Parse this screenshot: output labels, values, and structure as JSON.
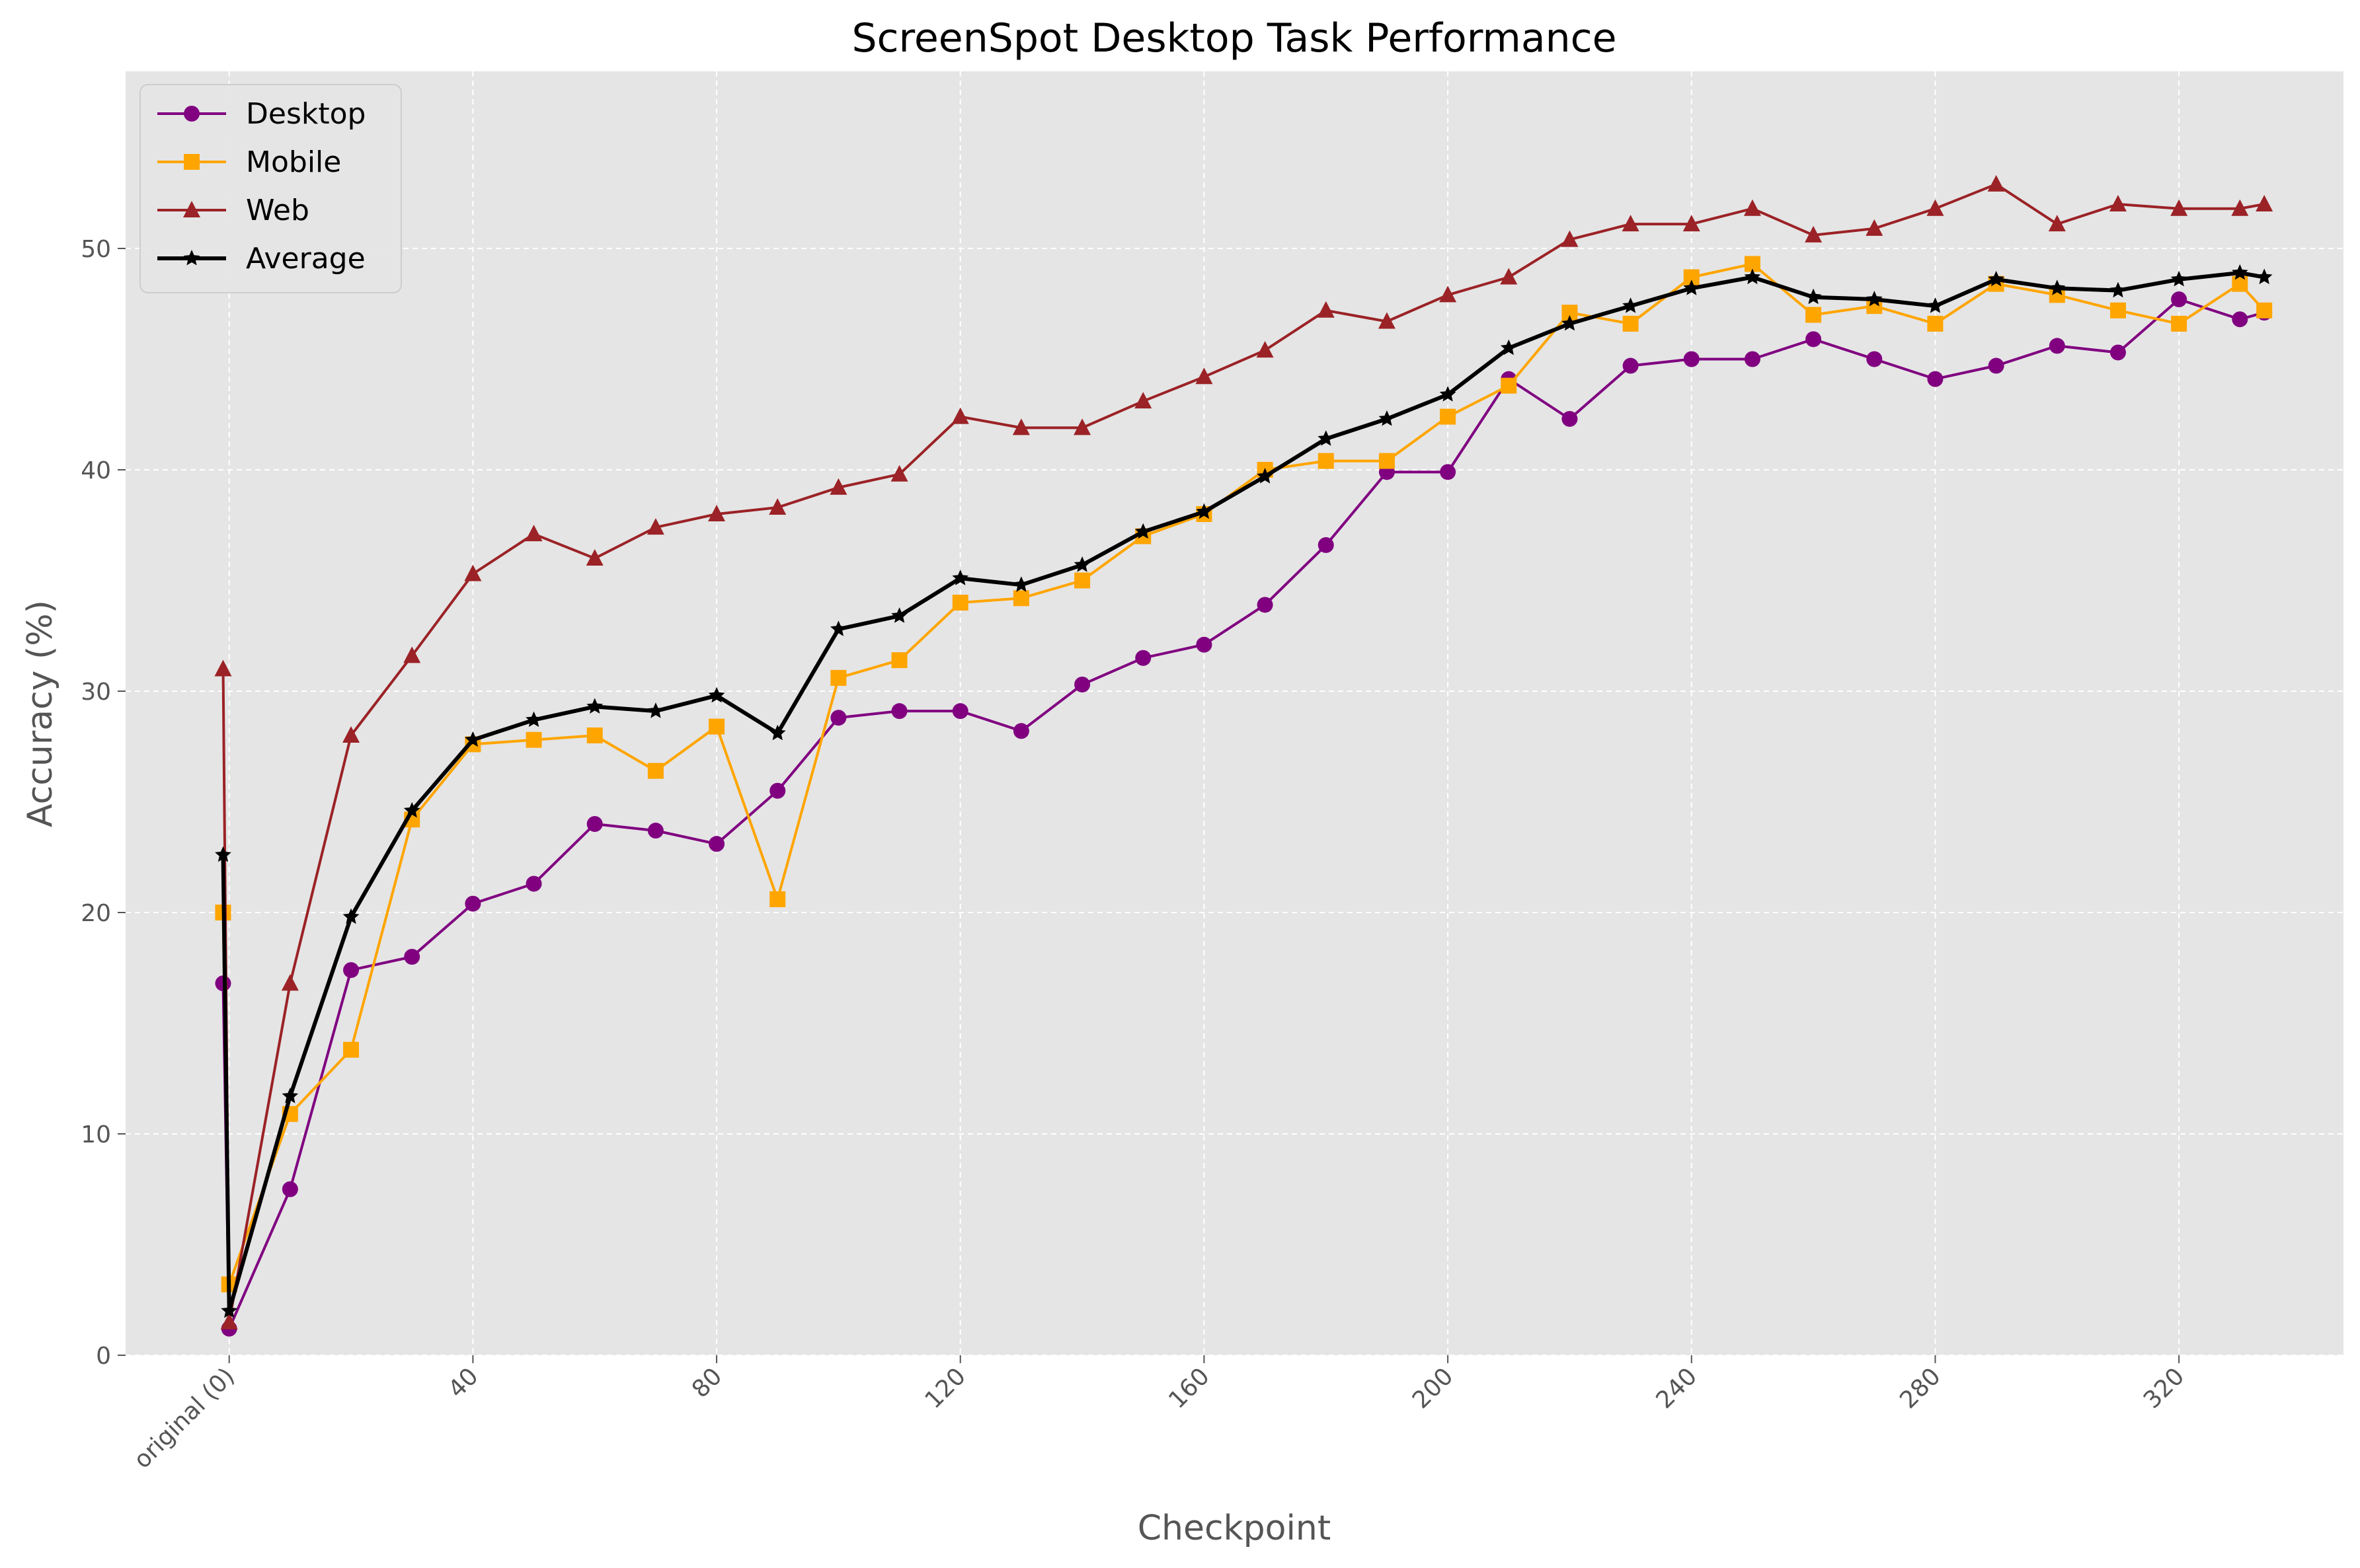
{
  "chart_data": {
    "type": "line",
    "title": "ScreenSpot Desktop Task Performance",
    "xlabel": "Checkpoint",
    "ylabel": "Accuracy (%)",
    "xlim": [
      -17,
      347
    ],
    "ylim": [
      0,
      58
    ],
    "grid": true,
    "legend_position": "top-left",
    "x_ticks": [
      {
        "value": 0,
        "label": "original (0)"
      },
      {
        "value": 40,
        "label": "40"
      },
      {
        "value": 80,
        "label": "80"
      },
      {
        "value": 120,
        "label": "120"
      },
      {
        "value": 160,
        "label": "160"
      },
      {
        "value": 200,
        "label": "200"
      },
      {
        "value": 240,
        "label": "240"
      },
      {
        "value": 280,
        "label": "280"
      },
      {
        "value": 320,
        "label": "320"
      }
    ],
    "y_ticks": [
      0,
      10,
      20,
      30,
      40,
      50
    ],
    "series": [
      {
        "name": "Desktop",
        "color": "#800080",
        "marker": "circle",
        "points": [
          [
            -1,
            16.8
          ],
          [
            0,
            1.2
          ],
          [
            10,
            7.5
          ],
          [
            20,
            17.4
          ],
          [
            30,
            18.0
          ],
          [
            40,
            20.4
          ],
          [
            50,
            21.3
          ],
          [
            60,
            24.0
          ],
          [
            70,
            23.7
          ],
          [
            80,
            23.1
          ],
          [
            90,
            25.5
          ],
          [
            100,
            28.8
          ],
          [
            110,
            29.1
          ],
          [
            120,
            29.1
          ],
          [
            130,
            28.2
          ],
          [
            140,
            30.3
          ],
          [
            150,
            31.5
          ],
          [
            160,
            32.1
          ],
          [
            170,
            33.9
          ],
          [
            180,
            36.6
          ],
          [
            190,
            39.9
          ],
          [
            200,
            39.9
          ],
          [
            210,
            44.1
          ],
          [
            220,
            42.3
          ],
          [
            230,
            44.7
          ],
          [
            240,
            45.0
          ],
          [
            250,
            45.0
          ],
          [
            260,
            45.9
          ],
          [
            270,
            45.0
          ],
          [
            280,
            44.1
          ],
          [
            290,
            44.7
          ],
          [
            300,
            45.6
          ],
          [
            310,
            45.3
          ],
          [
            320,
            47.7
          ],
          [
            330,
            46.8
          ],
          [
            334,
            47.1
          ]
        ]
      },
      {
        "name": "Mobile",
        "color": "#FFA500",
        "marker": "square",
        "points": [
          [
            -1,
            20.0
          ],
          [
            0,
            3.2
          ],
          [
            10,
            10.9
          ],
          [
            20,
            13.8
          ],
          [
            30,
            24.2
          ],
          [
            40,
            27.6
          ],
          [
            50,
            27.8
          ],
          [
            60,
            28.0
          ],
          [
            70,
            26.4
          ],
          [
            80,
            28.4
          ],
          [
            90,
            20.6
          ],
          [
            100,
            30.6
          ],
          [
            110,
            31.4
          ],
          [
            120,
            34.0
          ],
          [
            130,
            34.2
          ],
          [
            140,
            35.0
          ],
          [
            150,
            37.0
          ],
          [
            160,
            38.0
          ],
          [
            170,
            40.0
          ],
          [
            180,
            40.4
          ],
          [
            190,
            40.4
          ],
          [
            200,
            42.4
          ],
          [
            210,
            43.8
          ],
          [
            220,
            47.1
          ],
          [
            230,
            46.6
          ],
          [
            240,
            48.7
          ],
          [
            250,
            49.3
          ],
          [
            260,
            47.0
          ],
          [
            270,
            47.4
          ],
          [
            280,
            46.6
          ],
          [
            290,
            48.4
          ],
          [
            300,
            47.9
          ],
          [
            310,
            47.2
          ],
          [
            320,
            46.6
          ],
          [
            330,
            48.4
          ],
          [
            334,
            47.2
          ]
        ]
      },
      {
        "name": "Web",
        "color": "#9B2226",
        "marker": "triangle",
        "points": [
          [
            -1,
            31.0
          ],
          [
            0,
            1.5
          ],
          [
            10,
            16.8
          ],
          [
            20,
            28.0
          ],
          [
            30,
            31.6
          ],
          [
            40,
            35.3
          ],
          [
            50,
            37.1
          ],
          [
            60,
            36.0
          ],
          [
            70,
            37.4
          ],
          [
            80,
            38.0
          ],
          [
            90,
            38.3
          ],
          [
            100,
            39.2
          ],
          [
            110,
            39.8
          ],
          [
            120,
            42.4
          ],
          [
            130,
            41.9
          ],
          [
            140,
            41.9
          ],
          [
            150,
            43.1
          ],
          [
            160,
            44.2
          ],
          [
            170,
            45.4
          ],
          [
            180,
            47.2
          ],
          [
            190,
            46.7
          ],
          [
            200,
            47.9
          ],
          [
            210,
            48.7
          ],
          [
            220,
            50.4
          ],
          [
            230,
            51.1
          ],
          [
            240,
            51.1
          ],
          [
            250,
            51.8
          ],
          [
            260,
            50.6
          ],
          [
            270,
            50.9
          ],
          [
            280,
            51.8
          ],
          [
            290,
            52.9
          ],
          [
            300,
            51.1
          ],
          [
            310,
            52.0
          ],
          [
            320,
            51.8
          ],
          [
            330,
            51.8
          ],
          [
            334,
            52.0
          ]
        ]
      },
      {
        "name": "Average",
        "color": "#000000",
        "marker": "star",
        "points": [
          [
            -1,
            22.6
          ],
          [
            0,
            2.0
          ],
          [
            10,
            11.7
          ],
          [
            20,
            19.8
          ],
          [
            30,
            24.6
          ],
          [
            40,
            27.8
          ],
          [
            50,
            28.7
          ],
          [
            60,
            29.3
          ],
          [
            70,
            29.1
          ],
          [
            80,
            29.8
          ],
          [
            90,
            28.1
          ],
          [
            100,
            32.8
          ],
          [
            110,
            33.4
          ],
          [
            120,
            35.1
          ],
          [
            130,
            34.8
          ],
          [
            140,
            35.7
          ],
          [
            150,
            37.2
          ],
          [
            160,
            38.1
          ],
          [
            170,
            39.7
          ],
          [
            180,
            41.4
          ],
          [
            190,
            42.3
          ],
          [
            200,
            43.4
          ],
          [
            210,
            45.5
          ],
          [
            220,
            46.6
          ],
          [
            230,
            47.4
          ],
          [
            240,
            48.2
          ],
          [
            250,
            48.7
          ],
          [
            260,
            47.8
          ],
          [
            270,
            47.7
          ],
          [
            280,
            47.4
          ],
          [
            290,
            48.6
          ],
          [
            300,
            48.2
          ],
          [
            310,
            48.1
          ],
          [
            320,
            48.6
          ],
          [
            330,
            48.9
          ],
          [
            334,
            48.7
          ]
        ]
      }
    ]
  }
}
